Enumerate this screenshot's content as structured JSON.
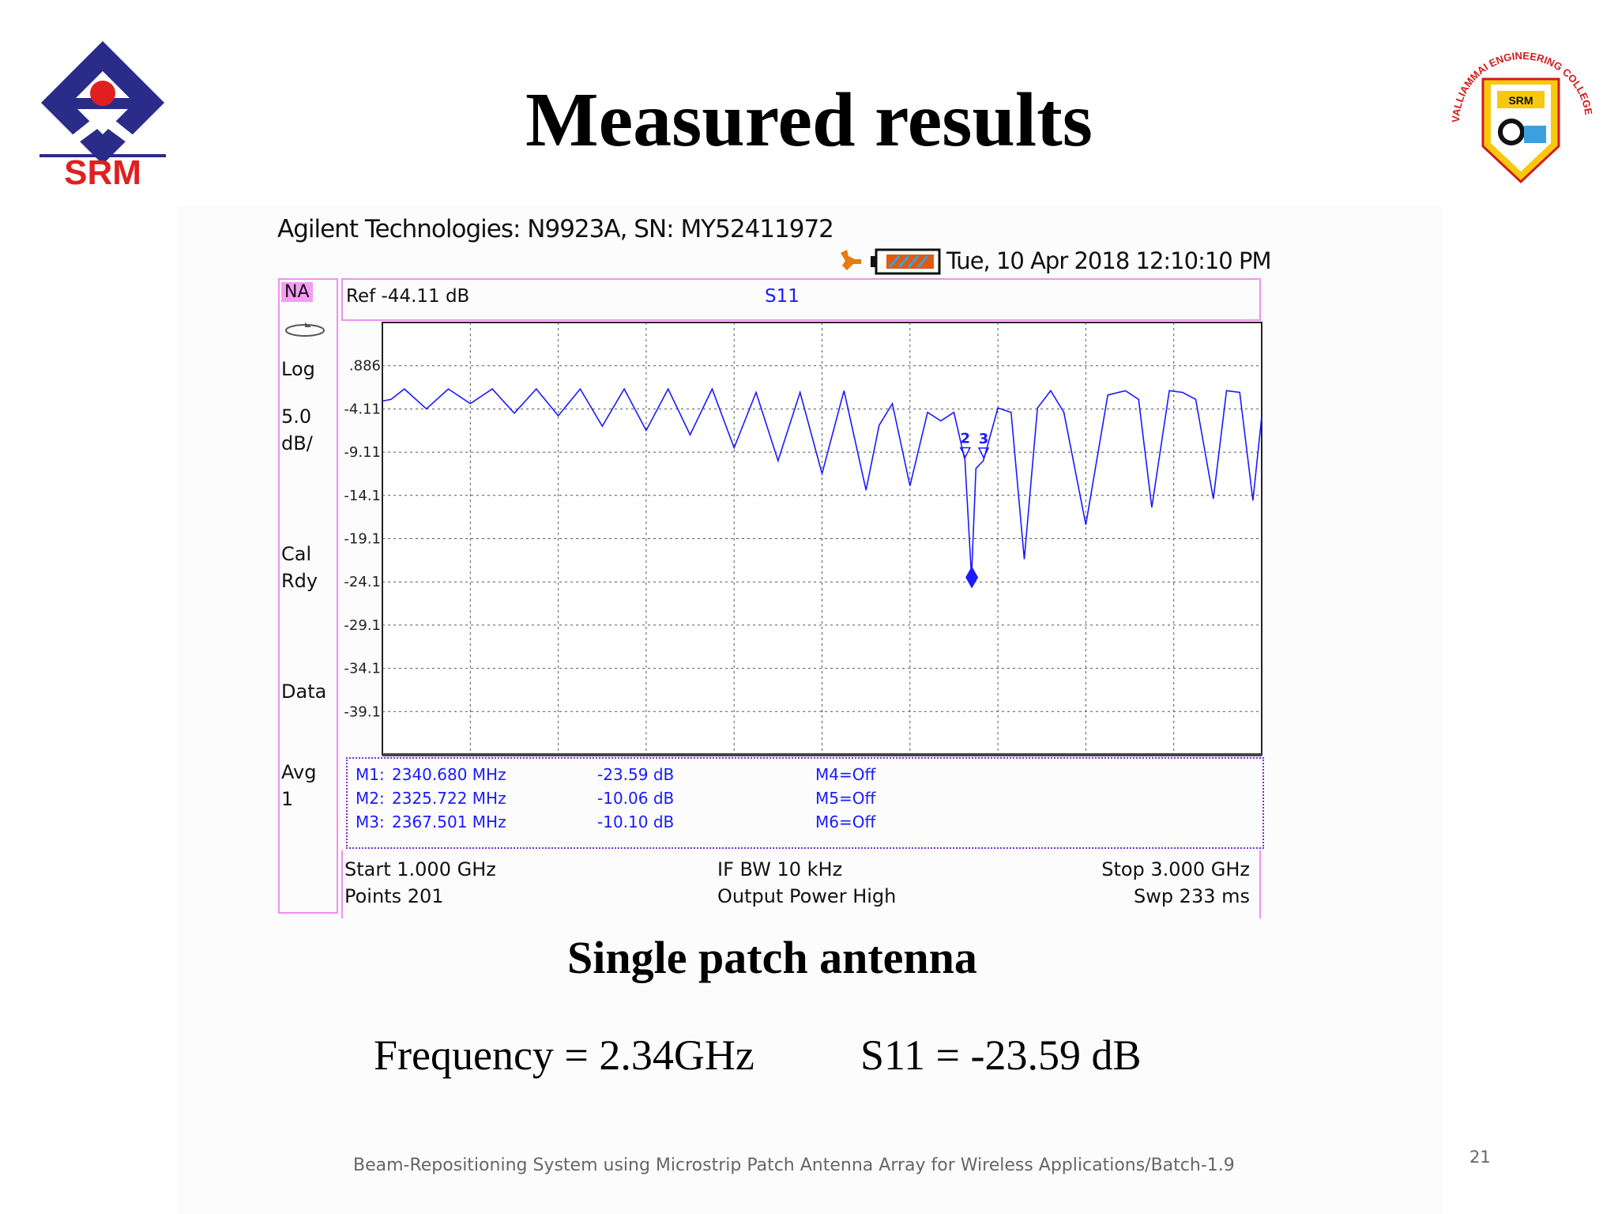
{
  "slide": {
    "title": "Measured results",
    "logo_left_text": "SRM",
    "logo_right_text": "SRM",
    "logo_right_arc": "VALLIAMMAI ENGINEERING COLLEGE",
    "caption": "Single patch antenna",
    "frequency_line": "Frequency = 2.34GHz",
    "s11_line": "S11 = -23.59 dB",
    "footer": "Beam-Repositioning System using Microstrip Patch Antenna Array for Wireless Applications/Batch-1.9",
    "page_number": "21"
  },
  "instrument": {
    "header": "Agilent Technologies: N9923A, SN: MY52411972",
    "datetime": "Tue, 10 Apr 2018 12:10:10 PM",
    "mode": "NA",
    "format": "Log",
    "scale_value": "5.0",
    "scale_unit": "dB/",
    "cal_1": "Cal",
    "cal_2": "Rdy",
    "trace": "Data",
    "avg_label": "Avg",
    "avg_value": "1",
    "ref_level": "Ref -44.11 dB",
    "measurement": "S11",
    "start": "Start 1.000 GHz",
    "points": "Points 201",
    "if_bw": "IF BW 10 kHz",
    "output_power": "Output Power High",
    "stop": "Stop 3.000 GHz",
    "sweep": "Swp 233 ms",
    "icon_status": "trace-plug-icon",
    "icon_battery": "battery-icon"
  },
  "markers": [
    {
      "name": "M1:",
      "freq": "2340.680 MHz",
      "value": "-23.59 dB",
      "off": "M4=Off"
    },
    {
      "name": "M2:",
      "freq": "2325.722 MHz",
      "value": "-10.06 dB",
      "off": "M5=Off"
    },
    {
      "name": "M3:",
      "freq": "2367.501 MHz",
      "value": "-10.10 dB",
      "off": "M6=Off"
    }
  ],
  "chart_data": {
    "type": "line",
    "title": "S11",
    "xlabel": "",
    "ylabel": "",
    "xlim": [
      1.0,
      3.0
    ],
    "ylim": [
      -44.11,
      5.89
    ],
    "y_ticks": [
      ".886",
      "-4.11",
      "-9.11",
      "-14.1",
      "-19.1",
      "-24.1",
      "-29.1",
      "-34.1",
      "-39.1"
    ],
    "grid": true,
    "color": "#1a1aff",
    "series": [
      {
        "name": "S11",
        "x": [
          1.0,
          1.02,
          1.05,
          1.1,
          1.15,
          1.2,
          1.25,
          1.3,
          1.35,
          1.4,
          1.45,
          1.5,
          1.55,
          1.6,
          1.65,
          1.7,
          1.75,
          1.8,
          1.85,
          1.9,
          1.95,
          2.0,
          2.05,
          2.1,
          2.13,
          2.16,
          2.2,
          2.24,
          2.27,
          2.3,
          2.325,
          2.34,
          2.35,
          2.367,
          2.4,
          2.43,
          2.46,
          2.49,
          2.52,
          2.55,
          2.6,
          2.65,
          2.69,
          2.72,
          2.75,
          2.79,
          2.82,
          2.85,
          2.89,
          2.92,
          2.95,
          2.98,
          3.0
        ],
        "y": [
          -3.2,
          -3.0,
          -1.8,
          -4.1,
          -1.8,
          -3.5,
          -1.8,
          -4.6,
          -1.8,
          -4.9,
          -1.8,
          -6.1,
          -1.8,
          -6.6,
          -1.8,
          -7.1,
          -1.8,
          -8.6,
          -2.2,
          -10.1,
          -2.2,
          -11.6,
          -2.0,
          -13.5,
          -6.0,
          -3.5,
          -13.0,
          -4.5,
          -5.5,
          -4.5,
          -10.06,
          -23.59,
          -11.0,
          -10.1,
          -4.0,
          -4.5,
          -21.5,
          -4.0,
          -2.0,
          -4.5,
          -17.5,
          -2.5,
          -2.0,
          -3.0,
          -15.5,
          -2.0,
          -2.2,
          -3.0,
          -14.5,
          -2.0,
          -2.2,
          -14.7,
          -5.0
        ]
      }
    ],
    "markers": [
      {
        "label": "2",
        "x": 2.3257,
        "y": -10.06
      },
      {
        "label": "3",
        "x": 2.3675,
        "y": -10.1
      },
      {
        "label": "1",
        "x": 2.3407,
        "y": -23.59
      }
    ]
  }
}
